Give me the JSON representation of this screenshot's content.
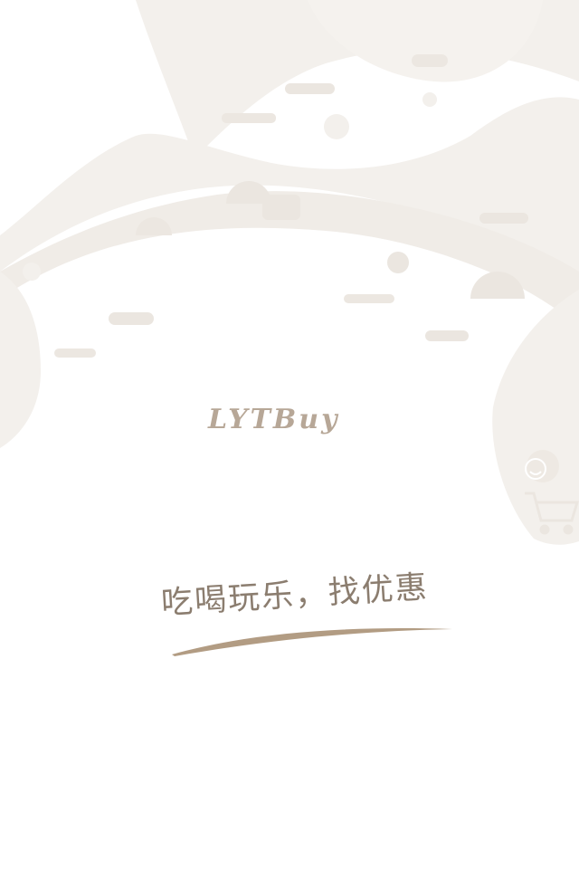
{
  "splash": {
    "logo_text": "LYTBuy",
    "tagline": "吃喝玩乐，找优惠"
  },
  "colors": {
    "background": "#ffffff",
    "pattern": "#f3f0ec",
    "logo": "#b7a797",
    "tagline": "#8b7d6f",
    "underline": "#a48b6d"
  },
  "icons": [
    "shopping-cart-icon",
    "smiley-icon",
    "umbrella-icon",
    "flower-icon",
    "fork-knife-icon",
    "car-icon",
    "yen-icon",
    "footprint-icon",
    "burger-icon",
    "pill-icon"
  ]
}
